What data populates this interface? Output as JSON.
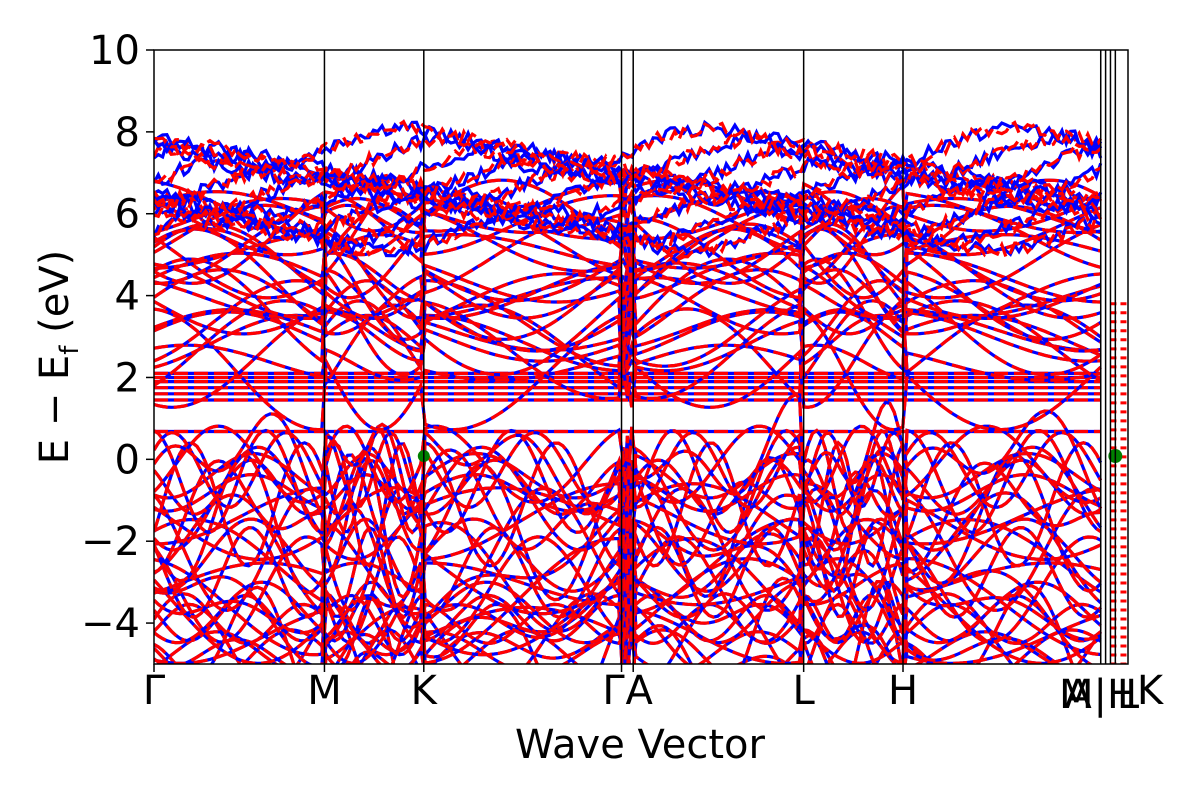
{
  "chart_data": {
    "type": "line",
    "xlabel": "Wave Vector",
    "ylabel": "E − E_f (eV)",
    "ylabel_main": "E − E",
    "ylabel_sub": "f",
    "ylabel_unit": " (eV)",
    "ylim": [
      -5,
      10
    ],
    "yticks": [
      -4,
      -2,
      0,
      2,
      4,
      6,
      8,
      10
    ],
    "ytick_labels": [
      "−4",
      "−2",
      "0",
      "2",
      "4",
      "6",
      "8",
      "10"
    ],
    "kpath": [
      {
        "label": "Γ",
        "k": 0.0
      },
      {
        "label": "M",
        "k": 0.175
      },
      {
        "label": "K",
        "k": 0.277
      },
      {
        "label": "Γ",
        "k": 0.48
      },
      {
        "label": "A",
        "k": 0.492
      },
      {
        "label": "L",
        "k": 0.667
      },
      {
        "label": "H",
        "k": 0.769
      },
      {
        "label": "A",
        "k": 0.972
      },
      {
        "label": "L",
        "k": 0.977
      },
      {
        "label": "M",
        "k": 0.982
      },
      {
        "label": "H",
        "k": 0.987
      },
      {
        "label": "K",
        "k": 1.0
      }
    ],
    "kpath_tail_labels": [
      "A",
      "M",
      "|",
      "H",
      "L",
      "K"
    ],
    "x_label_text_main": [
      "Γ",
      "M",
      "K",
      "Γ",
      "A",
      "L",
      "H"
    ],
    "x_tail_text": "A",
    "x_tail_text2": "M|H",
    "x_tail_text3": "L",
    "x_tail_text4": "K",
    "grid": false,
    "series": [
      {
        "name": "",
        "color": "#0000ff",
        "style": "solid"
      },
      {
        "name": "",
        "color": "#ff0000",
        "style": "dashed"
      }
    ],
    "flat_bands": [
      0.68,
      1.45,
      1.6,
      1.75,
      1.9,
      2.0,
      2.1
    ],
    "dirac_point": {
      "k": 0.277,
      "E": 0.08,
      "color": "#008000"
    },
    "side_point": {
      "k": 0.987,
      "E": 0.08,
      "color": "#008000"
    }
  }
}
